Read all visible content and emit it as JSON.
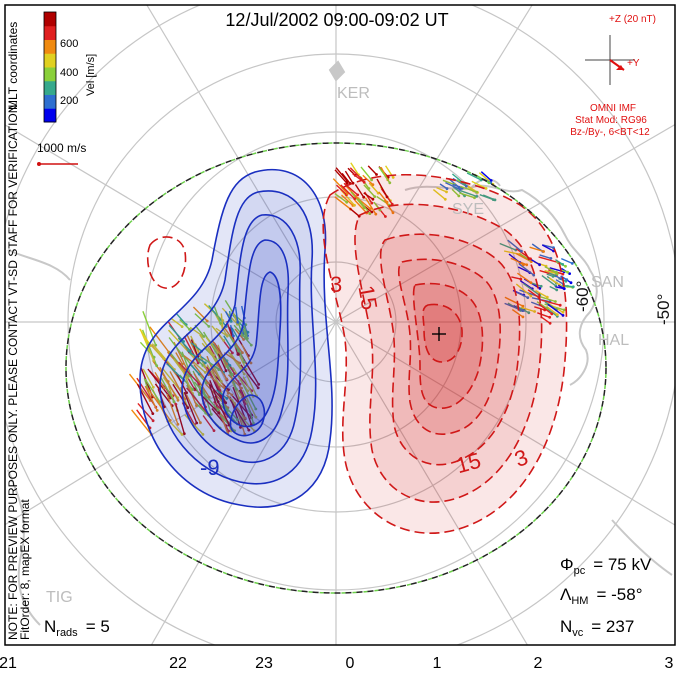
{
  "title": "12/Jul/2002 09:00-09:02 UT",
  "left_notes": {
    "coords": "MLT coordinates",
    "note": "NOTE: FOR PREVIEW PURPOSES ONLY. PLEASE CONTACT VT-SD STAFF FOR VERIFICATION.",
    "fit": "FitOrder: 8, mapEX format"
  },
  "velocity_scale": {
    "label": "Vel [m/s]",
    "ticks": [
      "600",
      "400",
      "200"
    ],
    "colors": [
      "#0000ee",
      "#2e6fd0",
      "#36a98c",
      "#8ad03a",
      "#e0d020",
      "#f08a10",
      "#e02020",
      "#b00000"
    ]
  },
  "reference_vector": {
    "label": "1000 m/s",
    "color": "#d01010"
  },
  "imf": {
    "z_label": "+Z (20 nT)",
    "y_label": "+Y",
    "source": "OMNI IMF",
    "model": "Stat Mod: RG96",
    "condition": "Bz-/By-, 6<BT<12",
    "color": "#e01010"
  },
  "stations": [
    "KER",
    "SYE",
    "SAN",
    "HAL",
    "TIG"
  ],
  "lat_labels": [
    "-60°",
    "-50°"
  ],
  "contour_labels": {
    "neg1": "-9",
    "pos1": "3",
    "pos2": "15",
    "pos3": "15",
    "pos4": "3"
  },
  "stats": {
    "phi_pc": "Φ",
    "phi_pc_sub": "pc",
    "phi_pc_value": "= 75 kV",
    "lambda_hm": "Λ",
    "lambda_hm_sub": "HM",
    "lambda_hm_value": "= -58°",
    "n_vc": "N",
    "n_vc_sub": "vc",
    "n_vc_value": "= 237",
    "n_rads": "N",
    "n_rads_sub": "rads",
    "n_rads_value": "= 5"
  },
  "mlt_axis": [
    "21",
    "22",
    "23",
    "0",
    "1",
    "2",
    "3"
  ],
  "colors": {
    "negative_cell": "#1a2fc0",
    "positive_cell": "#d01818",
    "coast": "#c8c8c8",
    "grid": "#c4c4c4"
  }
}
